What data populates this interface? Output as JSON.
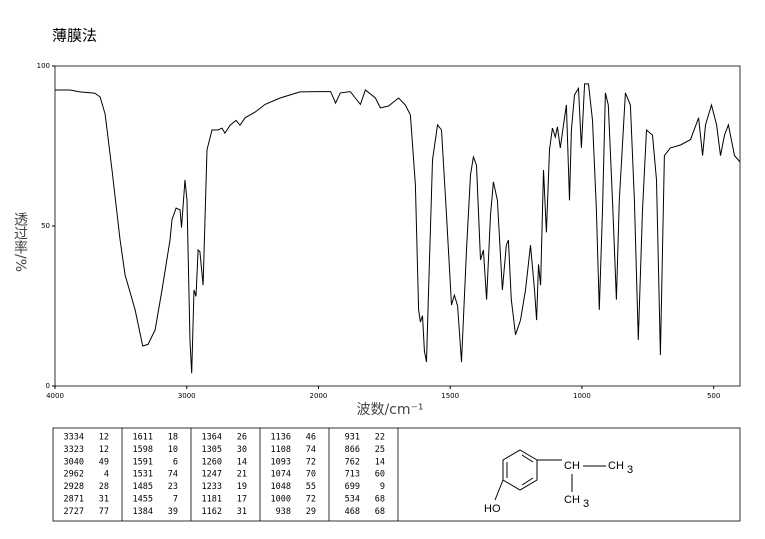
{
  "chart_data": {
    "type": "line",
    "title": "薄膜法",
    "x_label": "波数/cm⁻¹",
    "y_label": "透过率/%",
    "xlim": [
      4000,
      400
    ],
    "xticks": [
      4000,
      3000,
      2000,
      1500,
      1000,
      500
    ],
    "x_scale_break": 2000,
    "x_scale_factor_below_break": 2,
    "ylim": [
      0,
      100
    ],
    "yticks": [
      0,
      50,
      100
    ],
    "color": "#000000",
    "x": [
      4000,
      3886,
      3810,
      3696,
      3658,
      3620,
      3567,
      3506,
      3468,
      3392,
      3334,
      3294,
      3240,
      3188,
      3127,
      3112,
      3081,
      3050,
      3040,
      3013,
      2998,
      2975,
      2962,
      2945,
      2930,
      2914,
      2900,
      2876,
      2846,
      2808,
      2762,
      2732,
      2710,
      2671,
      2625,
      2596,
      2557,
      2481,
      2405,
      2291,
      2140,
      2003,
      1954,
      1935,
      1917,
      1879,
      1860,
      1841,
      1822,
      1784,
      1765,
      1734,
      1696,
      1670,
      1651,
      1632,
      1620,
      1613,
      1605,
      1598,
      1590,
      1583,
      1567,
      1548,
      1533,
      1514,
      1495,
      1484,
      1472,
      1457,
      1438,
      1423,
      1412,
      1400,
      1385,
      1374,
      1362,
      1347,
      1336,
      1321,
      1302,
      1287,
      1279,
      1268,
      1252,
      1233,
      1214,
      1195,
      1180,
      1172,
      1165,
      1157,
      1146,
      1135,
      1123,
      1112,
      1101,
      1093,
      1082,
      1070,
      1059,
      1047,
      1040,
      1028,
      1013,
      1002,
      990,
      975,
      960,
      945,
      934,
      922,
      911,
      900,
      884,
      869,
      858,
      835,
      816,
      801,
      786,
      770,
      755,
      732,
      717,
      702,
      687,
      664,
      626,
      588,
      557,
      542,
      531,
      508,
      489,
      474,
      459,
      444,
      421,
      400
    ],
    "values": [
      92.5,
      92.5,
      91.9,
      91.5,
      90.3,
      85,
      67.5,
      45.6,
      34.7,
      23.8,
      12.5,
      13,
      17.5,
      30,
      45.6,
      52,
      55.6,
      55,
      49.5,
      64.4,
      58,
      14,
      4,
      30,
      28,
      42.5,
      42,
      31.5,
      73.8,
      80,
      80,
      80.6,
      79,
      81.5,
      83,
      81.5,
      83.8,
      85.6,
      88,
      90,
      91.9,
      92,
      92,
      88.4,
      91.6,
      92,
      90,
      88,
      92.5,
      90,
      86.9,
      87.5,
      90,
      87.8,
      84.7,
      62.8,
      23.8,
      20,
      22,
      11,
      7.5,
      27,
      70.6,
      81.6,
      80,
      53.4,
      25.3,
      28.4,
      25,
      7.5,
      42.5,
      66,
      71.6,
      69,
      39.4,
      42.5,
      27,
      53.4,
      63.8,
      58,
      30,
      44,
      45.6,
      27,
      16,
      20.6,
      30,
      44,
      30,
      20.6,
      38,
      31.5,
      67.5,
      48,
      73.8,
      80.6,
      77.8,
      81,
      74.4,
      81.6,
      87.8,
      58,
      80,
      91,
      93,
      74.4,
      94.4,
      94.4,
      83,
      55,
      23.8,
      55,
      91.6,
      87.8,
      58,
      27,
      58,
      91.6,
      87.8,
      58,
      14.4,
      55,
      80,
      78.4,
      64.4,
      9.7,
      72,
      74.4,
      75.3,
      77,
      83.8,
      72,
      81.6,
      87.8,
      81.6,
      72,
      78.4,
      81.6,
      72,
      70
    ]
  },
  "peak_table": [
    [
      [
        3334,
        12
      ],
      [
        3323,
        12
      ],
      [
        3040,
        49
      ],
      [
        2962,
        4
      ],
      [
        2928,
        28
      ],
      [
        2871,
        31
      ],
      [
        2727,
        77
      ]
    ],
    [
      [
        1611,
        18
      ],
      [
        1598,
        10
      ],
      [
        1591,
        6
      ],
      [
        1531,
        74
      ],
      [
        1485,
        23
      ],
      [
        1455,
        7
      ],
      [
        1384,
        39
      ]
    ],
    [
      [
        1364,
        26
      ],
      [
        1305,
        30
      ],
      [
        1260,
        14
      ],
      [
        1247,
        21
      ],
      [
        1233,
        19
      ],
      [
        1181,
        17
      ],
      [
        1162,
        31
      ]
    ],
    [
      [
        1136,
        46
      ],
      [
        1108,
        74
      ],
      [
        1093,
        72
      ],
      [
        1074,
        70
      ],
      [
        1048,
        55
      ],
      [
        1000,
        72
      ],
      [
        938,
        29
      ]
    ],
    [
      [
        931,
        22
      ],
      [
        866,
        25
      ],
      [
        762,
        14
      ],
      [
        713,
        60
      ],
      [
        699,
        9
      ],
      [
        534,
        68
      ],
      [
        468,
        68
      ]
    ]
  ],
  "structure": {
    "hydroxyl": "HO",
    "methine": "CH",
    "methyl_1": "CH",
    "methyl_1_sub": "3",
    "methyl_2": "CH",
    "methyl_2_sub": "3"
  }
}
